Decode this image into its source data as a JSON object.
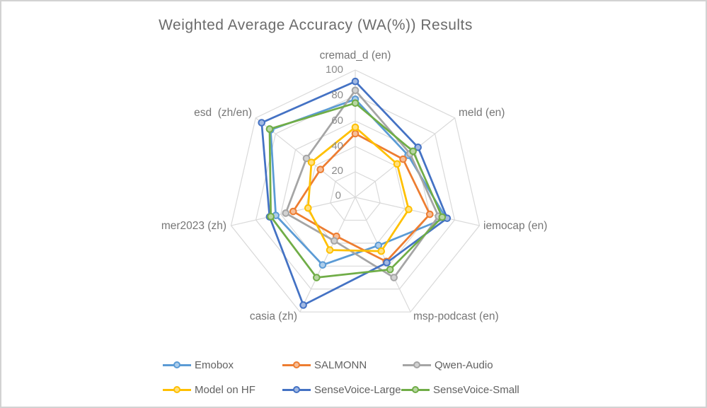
{
  "window": {
    "background": "#ffffff",
    "border_color": "#d2d2d2"
  },
  "title": "Weighted Average Accuracy (WA(%)) Results",
  "chart_data": {
    "type": "radar",
    "title": "Weighted Average Accuracy (WA(%)) Results",
    "axes_order": "clockwise from top",
    "categories": [
      "cremad_d (en)",
      "meld (en)",
      "iemocap (en)",
      "msp-podcast (en)",
      "casia (zh)",
      "mer2023 (zh)",
      "esd  (zh/en)"
    ],
    "ticks": [
      100,
      80,
      60,
      40,
      20,
      0
    ],
    "rmin": 0,
    "rmax": 100,
    "grid": true,
    "grid_color": "#d9d9d9",
    "legend_position": "bottom",
    "series": [
      {
        "name": "Emobox",
        "color": "#5B9BD5",
        "values": [
          77,
          53,
          73,
          42,
          59,
          64,
          85
        ]
      },
      {
        "name": "SALMONN",
        "color": "#ED7D31",
        "values": [
          50,
          48,
          60,
          56,
          34,
          50,
          35
        ]
      },
      {
        "name": "Qwen-Audio",
        "color": "#A5A5A5",
        "values": [
          84,
          55,
          67,
          70,
          38,
          56,
          49
        ]
      },
      {
        "name": "Model on HF",
        "color": "#FFC000",
        "values": [
          55,
          42,
          43,
          47,
          46,
          38,
          44
        ]
      },
      {
        "name": "SenseVoice-Large",
        "color": "#4472C4",
        "values": [
          91,
          63,
          74,
          57,
          94,
          69,
          94
        ]
      },
      {
        "name": "SenseVoice-Small",
        "color": "#70AD47",
        "values": [
          74,
          58,
          70,
          63,
          70,
          68,
          86
        ]
      }
    ]
  }
}
